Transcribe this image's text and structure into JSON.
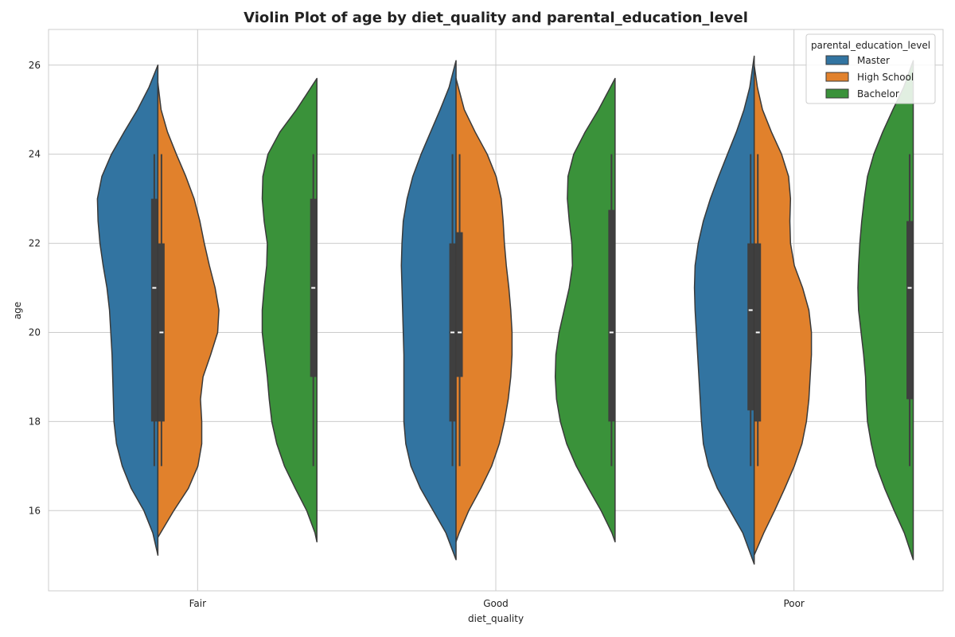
{
  "chart_data": {
    "type": "violin",
    "title": "Violin Plot of age by diet_quality and parental_education_level",
    "xlabel": "diet_quality",
    "ylabel": "age",
    "categories": [
      "Fair",
      "Good",
      "Poor"
    ],
    "ylim": [
      14.2,
      26.8
    ],
    "yticks": [
      16,
      18,
      20,
      22,
      24,
      26
    ],
    "grid": true,
    "legend": {
      "title": "parental_education_level",
      "placement": "top-right",
      "entries": [
        "Master",
        "High School",
        "Bachelor"
      ]
    },
    "series": [
      {
        "name": "Master",
        "color": "#3274a1",
        "side": "left",
        "violins": [
          {
            "category": "Fair",
            "min": 15.0,
            "max": 26.0,
            "box": {
              "q1": 18,
              "median": 21,
              "q3": 23,
              "whisker_low": 17,
              "whisker_high": 24
            },
            "density": [
              [
                15.0,
                0.0
              ],
              [
                15.5,
                0.08
              ],
              [
                16.0,
                0.22
              ],
              [
                16.5,
                0.42
              ],
              [
                17.0,
                0.56
              ],
              [
                17.5,
                0.65
              ],
              [
                18.0,
                0.69
              ],
              [
                18.5,
                0.7
              ],
              [
                19.0,
                0.71
              ],
              [
                19.5,
                0.72
              ],
              [
                20.0,
                0.74
              ],
              [
                20.5,
                0.76
              ],
              [
                21.0,
                0.8
              ],
              [
                21.5,
                0.86
              ],
              [
                22.0,
                0.91
              ],
              [
                22.5,
                0.94
              ],
              [
                23.0,
                0.95
              ],
              [
                23.5,
                0.88
              ],
              [
                24.0,
                0.73
              ],
              [
                24.5,
                0.53
              ],
              [
                25.0,
                0.32
              ],
              [
                25.5,
                0.14
              ],
              [
                26.0,
                0.0
              ]
            ]
          },
          {
            "category": "Good",
            "min": 14.9,
            "max": 26.1,
            "box": {
              "q1": 18,
              "median": 20,
              "q3": 22,
              "whisker_low": 17,
              "whisker_high": 24
            },
            "density": [
              [
                14.9,
                0.0
              ],
              [
                15.5,
                0.16
              ],
              [
                16.0,
                0.36
              ],
              [
                16.5,
                0.56
              ],
              [
                17.0,
                0.71
              ],
              [
                17.5,
                0.79
              ],
              [
                18.0,
                0.82
              ],
              [
                18.5,
                0.82
              ],
              [
                19.0,
                0.82
              ],
              [
                19.5,
                0.82
              ],
              [
                20.0,
                0.83
              ],
              [
                20.5,
                0.84
              ],
              [
                21.0,
                0.85
              ],
              [
                21.5,
                0.86
              ],
              [
                22.0,
                0.85
              ],
              [
                22.5,
                0.83
              ],
              [
                23.0,
                0.77
              ],
              [
                23.5,
                0.68
              ],
              [
                24.0,
                0.55
              ],
              [
                24.5,
                0.4
              ],
              [
                25.0,
                0.25
              ],
              [
                25.5,
                0.11
              ],
              [
                26.1,
                0.0
              ]
            ]
          },
          {
            "category": "Poor",
            "min": 14.8,
            "max": 26.2,
            "box": {
              "q1": 18.25,
              "median": 20.5,
              "q3": 22,
              "whisker_low": 17,
              "whisker_high": 24
            },
            "density": [
              [
                14.8,
                0.0
              ],
              [
                15.5,
                0.18
              ],
              [
                16.0,
                0.38
              ],
              [
                16.5,
                0.58
              ],
              [
                17.0,
                0.72
              ],
              [
                17.5,
                0.8
              ],
              [
                18.0,
                0.83
              ],
              [
                18.5,
                0.85
              ],
              [
                19.0,
                0.87
              ],
              [
                19.5,
                0.89
              ],
              [
                20.0,
                0.91
              ],
              [
                20.5,
                0.93
              ],
              [
                21.0,
                0.94
              ],
              [
                21.5,
                0.93
              ],
              [
                22.0,
                0.88
              ],
              [
                22.5,
                0.8
              ],
              [
                23.0,
                0.69
              ],
              [
                23.5,
                0.56
              ],
              [
                24.0,
                0.42
              ],
              [
                24.5,
                0.28
              ],
              [
                25.0,
                0.16
              ],
              [
                25.5,
                0.07
              ],
              [
                26.2,
                0.0
              ]
            ]
          }
        ]
      },
      {
        "name": "High School",
        "color": "#e1812c",
        "side": "right",
        "violins": [
          {
            "category": "Fair",
            "min": 15.4,
            "max": 25.6,
            "box": {
              "q1": 18,
              "median": 20,
              "q3": 22,
              "whisker_low": 17,
              "whisker_high": 24
            },
            "density": [
              [
                15.4,
                0.0
              ],
              [
                16.0,
                0.25
              ],
              [
                16.5,
                0.48
              ],
              [
                17.0,
                0.63
              ],
              [
                17.5,
                0.69
              ],
              [
                18.0,
                0.69
              ],
              [
                18.5,
                0.67
              ],
              [
                19.0,
                0.71
              ],
              [
                19.5,
                0.83
              ],
              [
                20.0,
                0.94
              ],
              [
                20.5,
                0.96
              ],
              [
                21.0,
                0.9
              ],
              [
                21.5,
                0.81
              ],
              [
                22.0,
                0.73
              ],
              [
                22.5,
                0.66
              ],
              [
                23.0,
                0.57
              ],
              [
                23.5,
                0.44
              ],
              [
                24.0,
                0.29
              ],
              [
                24.5,
                0.15
              ],
              [
                25.0,
                0.05
              ],
              [
                25.6,
                0.0
              ]
            ]
          },
          {
            "category": "Good",
            "min": 15.3,
            "max": 25.7,
            "box": {
              "q1": 19,
              "median": 20,
              "q3": 22.25,
              "whisker_low": 17,
              "whisker_high": 24
            },
            "density": [
              [
                15.3,
                0.0
              ],
              [
                15.5,
                0.05
              ],
              [
                16.0,
                0.2
              ],
              [
                16.5,
                0.39
              ],
              [
                17.0,
                0.56
              ],
              [
                17.5,
                0.68
              ],
              [
                18.0,
                0.76
              ],
              [
                18.5,
                0.82
              ],
              [
                19.0,
                0.86
              ],
              [
                19.5,
                0.88
              ],
              [
                20.0,
                0.88
              ],
              [
                20.5,
                0.86
              ],
              [
                21.0,
                0.83
              ],
              [
                21.5,
                0.79
              ],
              [
                22.0,
                0.76
              ],
              [
                22.5,
                0.74
              ],
              [
                23.0,
                0.71
              ],
              [
                23.5,
                0.63
              ],
              [
                24.0,
                0.49
              ],
              [
                24.5,
                0.3
              ],
              [
                25.0,
                0.13
              ],
              [
                25.7,
                0.0
              ]
            ]
          },
          {
            "category": "Poor",
            "min": 15.0,
            "max": 26.0,
            "box": {
              "q1": 18,
              "median": 20,
              "q3": 22,
              "whisker_low": 17,
              "whisker_high": 24
            },
            "density": [
              [
                15.0,
                0.0
              ],
              [
                15.5,
                0.15
              ],
              [
                16.0,
                0.32
              ],
              [
                16.5,
                0.48
              ],
              [
                17.0,
                0.63
              ],
              [
                17.5,
                0.75
              ],
              [
                18.0,
                0.82
              ],
              [
                18.5,
                0.86
              ],
              [
                19.0,
                0.88
              ],
              [
                19.5,
                0.9
              ],
              [
                20.0,
                0.9
              ],
              [
                20.5,
                0.86
              ],
              [
                21.0,
                0.76
              ],
              [
                21.5,
                0.63
              ],
              [
                22.0,
                0.57
              ],
              [
                22.5,
                0.56
              ],
              [
                23.0,
                0.57
              ],
              [
                23.5,
                0.54
              ],
              [
                24.0,
                0.43
              ],
              [
                24.5,
                0.27
              ],
              [
                25.0,
                0.13
              ],
              [
                25.5,
                0.05
              ],
              [
                26.0,
                0.0
              ]
            ]
          }
        ]
      },
      {
        "name": "Bachelor",
        "color": "#3a923a",
        "side": "left",
        "violins": [
          {
            "category": "Fair",
            "min": 15.3,
            "max": 25.7,
            "box": {
              "q1": 19,
              "median": 21,
              "q3": 23,
              "whisker_low": 17,
              "whisker_high": 24
            },
            "density": [
              [
                15.3,
                0.0
              ],
              [
                15.5,
                0.03
              ],
              [
                16.0,
                0.16
              ],
              [
                16.5,
                0.34
              ],
              [
                17.0,
                0.51
              ],
              [
                17.5,
                0.63
              ],
              [
                18.0,
                0.71
              ],
              [
                18.5,
                0.75
              ],
              [
                19.0,
                0.78
              ],
              [
                19.5,
                0.82
              ],
              [
                20.0,
                0.86
              ],
              [
                20.5,
                0.86
              ],
              [
                21.0,
                0.83
              ],
              [
                21.5,
                0.79
              ],
              [
                22.0,
                0.78
              ],
              [
                22.5,
                0.83
              ],
              [
                23.0,
                0.86
              ],
              [
                23.5,
                0.85
              ],
              [
                24.0,
                0.77
              ],
              [
                24.5,
                0.58
              ],
              [
                25.0,
                0.32
              ],
              [
                25.7,
                0.0
              ]
            ]
          },
          {
            "category": "Good",
            "min": 15.3,
            "max": 25.7,
            "box": {
              "q1": 18,
              "median": 20,
              "q3": 22.75,
              "whisker_low": 17,
              "whisker_high": 24
            },
            "density": [
              [
                15.3,
                0.0
              ],
              [
                15.5,
                0.05
              ],
              [
                16.0,
                0.22
              ],
              [
                16.5,
                0.42
              ],
              [
                17.0,
                0.61
              ],
              [
                17.5,
                0.76
              ],
              [
                18.0,
                0.86
              ],
              [
                18.5,
                0.92
              ],
              [
                19.0,
                0.94
              ],
              [
                19.5,
                0.93
              ],
              [
                20.0,
                0.88
              ],
              [
                20.5,
                0.8
              ],
              [
                21.0,
                0.72
              ],
              [
                21.5,
                0.67
              ],
              [
                22.0,
                0.68
              ],
              [
                22.5,
                0.72
              ],
              [
                23.0,
                0.75
              ],
              [
                23.5,
                0.74
              ],
              [
                24.0,
                0.65
              ],
              [
                24.5,
                0.47
              ],
              [
                25.0,
                0.26
              ],
              [
                25.7,
                0.0
              ]
            ]
          },
          {
            "category": "Poor",
            "min": 14.9,
            "max": 26.1,
            "box": {
              "q1": 18.5,
              "median": 21,
              "q3": 22.5,
              "whisker_low": 17,
              "whisker_high": 24
            },
            "density": [
              [
                14.9,
                0.0
              ],
              [
                15.5,
                0.14
              ],
              [
                16.0,
                0.3
              ],
              [
                16.5,
                0.45
              ],
              [
                17.0,
                0.58
              ],
              [
                17.5,
                0.66
              ],
              [
                18.0,
                0.72
              ],
              [
                18.5,
                0.74
              ],
              [
                19.0,
                0.75
              ],
              [
                19.5,
                0.78
              ],
              [
                20.0,
                0.82
              ],
              [
                20.5,
                0.86
              ],
              [
                21.0,
                0.87
              ],
              [
                21.5,
                0.86
              ],
              [
                22.0,
                0.84
              ],
              [
                22.5,
                0.81
              ],
              [
                23.0,
                0.77
              ],
              [
                23.5,
                0.72
              ],
              [
                24.0,
                0.62
              ],
              [
                24.5,
                0.48
              ],
              [
                25.0,
                0.32
              ],
              [
                25.5,
                0.15
              ],
              [
                26.1,
                0.0
              ]
            ]
          }
        ]
      }
    ]
  }
}
